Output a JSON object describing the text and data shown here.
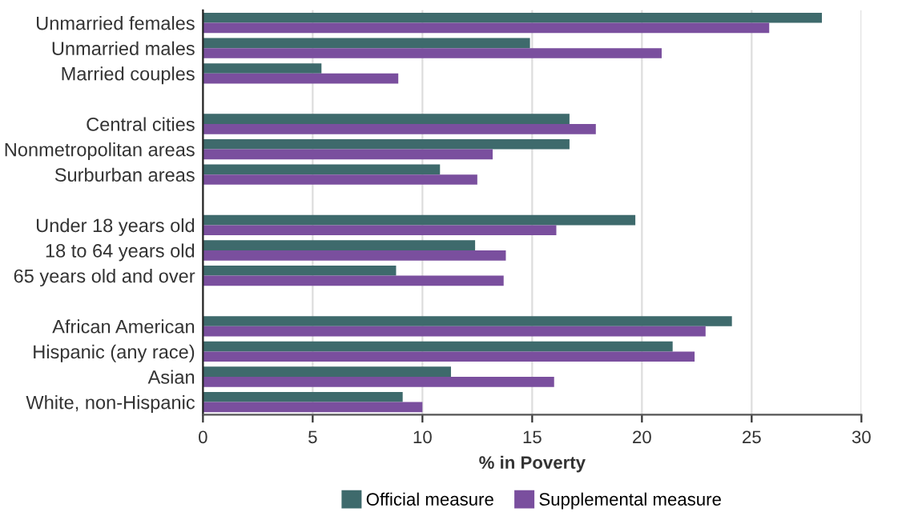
{
  "chart_data": {
    "type": "bar",
    "orientation": "horizontal",
    "xlabel": "% in Poverty",
    "categories": [
      "Unmarried females",
      "Unmarried males",
      "Married couples",
      null,
      "Central cities",
      "Nonmetropolitan areas",
      "Surburban areas",
      null,
      "Under 18 years old",
      "18 to 64 years old",
      "65 years old and over",
      null,
      "African American",
      "Hispanic (any race)",
      "Asian",
      "White, non-Hispanic"
    ],
    "series": [
      {
        "name": "Official measure",
        "color": "#3e6a6c",
        "values": [
          28.2,
          14.9,
          5.4,
          null,
          16.7,
          16.7,
          10.8,
          null,
          19.7,
          12.4,
          8.8,
          null,
          24.1,
          21.4,
          11.3,
          9.1
        ]
      },
      {
        "name": "Supplemental measure",
        "color": "#7a4f9e",
        "values": [
          25.8,
          20.9,
          8.9,
          null,
          17.9,
          13.2,
          12.5,
          null,
          16.1,
          13.8,
          13.7,
          null,
          22.9,
          22.4,
          16.0,
          10.0
        ]
      }
    ],
    "xlim": [
      0,
      30
    ],
    "xticks": [
      0,
      5,
      10,
      15,
      20,
      25,
      30
    ],
    "grid": "x",
    "legend": "bottom"
  }
}
